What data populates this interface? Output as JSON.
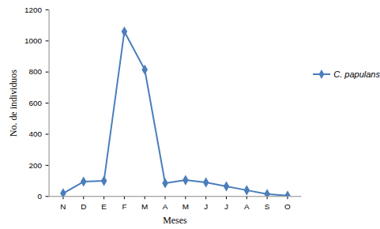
{
  "chart_data": {
    "type": "line",
    "x_label": "Meses",
    "y_label": "No. de individuos",
    "categories": [
      "N",
      "D",
      "E",
      "F",
      "M",
      "A",
      "M",
      "J",
      "J",
      "A",
      "S",
      "O"
    ],
    "series": [
      {
        "name": "C. papulans",
        "color": "#4a7ebb",
        "marker": "diamond",
        "values": [
          20,
          95,
          100,
          1060,
          815,
          85,
          105,
          90,
          65,
          40,
          15,
          5
        ]
      }
    ],
    "ylim": [
      0,
      1200
    ],
    "yticks": [
      0,
      200,
      400,
      600,
      800,
      1000,
      1200
    ],
    "grid": false,
    "legend": "right"
  }
}
